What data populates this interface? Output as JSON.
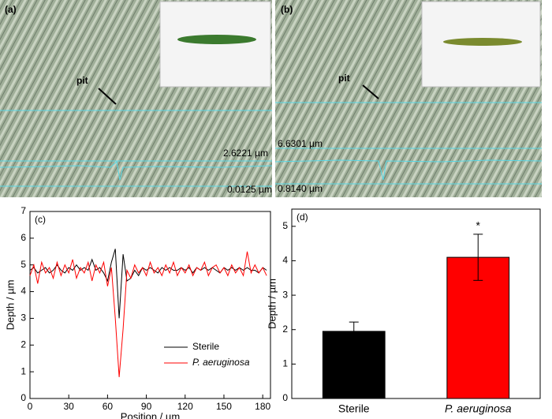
{
  "panels": [
    {
      "label": "(a)",
      "pit": "pit",
      "upper": "2.6221 µm",
      "lower": "0.0125 µm"
    },
    {
      "label": "(b)",
      "pit": "pit",
      "upper": "6.6301 µm",
      "lower": "0.8140 µm"
    }
  ],
  "chart_data": [
    {
      "type": "line",
      "panel": "(c)",
      "xlabel": "Position / µm",
      "ylabel": "Depth / µm",
      "xlim": [
        0,
        186
      ],
      "xticks": [
        0,
        30,
        60,
        90,
        120,
        150,
        180
      ],
      "ylim": [
        0,
        7
      ],
      "yticks": [
        0,
        1,
        2,
        3,
        4,
        5,
        6,
        7
      ],
      "legend": "lower right",
      "x": [
        0,
        3,
        6,
        9,
        12,
        15,
        18,
        21,
        24,
        27,
        30,
        33,
        36,
        39,
        42,
        45,
        48,
        51,
        54,
        57,
        60,
        63,
        66,
        69,
        72,
        75,
        78,
        81,
        84,
        87,
        90,
        93,
        96,
        99,
        102,
        105,
        108,
        111,
        114,
        117,
        120,
        123,
        126,
        129,
        132,
        135,
        138,
        141,
        144,
        147,
        150,
        153,
        156,
        159,
        162,
        165,
        168,
        171,
        174,
        177,
        180,
        183
      ],
      "series": [
        {
          "name": "Sterile",
          "color": "#000000",
          "values": [
            4.8,
            4.9,
            4.7,
            4.8,
            4.9,
            4.7,
            4.8,
            5.0,
            4.8,
            4.7,
            4.9,
            4.8,
            5.0,
            4.8,
            4.9,
            4.8,
            5.2,
            4.8,
            4.9,
            4.7,
            4.4,
            5.1,
            5.6,
            3.0,
            5.4,
            4.4,
            4.5,
            4.8,
            4.6,
            4.9,
            4.8,
            4.9,
            4.8,
            4.7,
            4.9,
            4.8,
            4.9,
            4.8,
            4.8,
            4.9,
            4.8,
            4.9,
            4.7,
            4.9,
            4.8,
            4.9,
            4.8,
            4.9,
            4.8,
            4.7,
            4.9,
            4.8,
            4.9,
            4.8,
            4.9,
            4.8,
            4.9,
            4.8,
            4.8,
            4.7,
            4.9,
            4.8
          ]
        },
        {
          "name": "P. aeruginosa",
          "color": "#ff0000",
          "values": [
            4.6,
            5.0,
            4.3,
            5.1,
            4.7,
            4.9,
            4.5,
            5.1,
            4.6,
            5.0,
            4.7,
            5.2,
            4.5,
            4.9,
            4.7,
            5.1,
            4.4,
            5.0,
            4.7,
            5.1,
            4.2,
            4.9,
            3.0,
            0.8,
            2.6,
            4.8,
            4.5,
            5.0,
            4.7,
            4.9,
            4.6,
            5.1,
            4.7,
            4.9,
            4.6,
            5.0,
            4.7,
            5.1,
            4.6,
            4.9,
            4.7,
            5.0,
            4.6,
            4.9,
            4.8,
            5.1,
            4.6,
            4.9,
            5.0,
            4.7,
            4.9,
            4.6,
            5.0,
            4.7,
            4.9,
            4.6,
            5.5,
            4.7,
            5.0,
            4.7,
            4.9,
            4.6
          ]
        }
      ]
    },
    {
      "type": "bar",
      "panel": "(d)",
      "ylabel": "Depth / µm",
      "categories": [
        "Sterile",
        "P. aeruginosa"
      ],
      "values": [
        1.95,
        4.1
      ],
      "errors": [
        0.27,
        0.67
      ],
      "colors": [
        "#000000",
        "#ff0000"
      ],
      "annotation": "*",
      "ylim": [
        0,
        5.5
      ],
      "yticks": [
        0,
        1,
        2,
        3,
        4,
        5
      ]
    }
  ]
}
